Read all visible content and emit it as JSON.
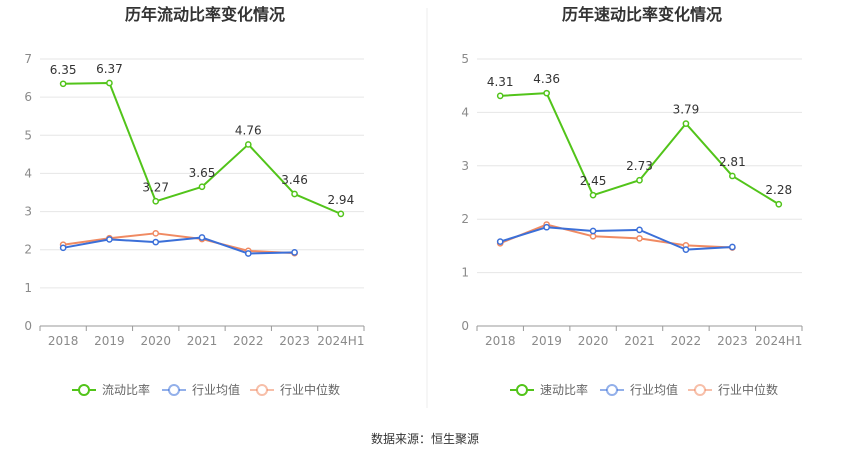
{
  "source_text": "数据来源：恒生聚源",
  "chart_data": [
    {
      "type": "line",
      "title": "历年流动比率变化情况",
      "categories": [
        "2018",
        "2019",
        "2020",
        "2021",
        "2022",
        "2023",
        "2024H1"
      ],
      "ylim": [
        0,
        7
      ],
      "yticks": [
        0,
        1,
        2,
        3,
        4,
        5,
        6,
        7
      ],
      "grid": true,
      "legend_position": "bottom",
      "series": [
        {
          "name": "流动比率",
          "color": "#52c41a",
          "values": [
            6.35,
            6.37,
            3.27,
            3.65,
            4.76,
            3.46,
            2.94
          ],
          "labels": true
        },
        {
          "name": "行业均值",
          "color": "#3b6fd8",
          "values": [
            2.05,
            2.27,
            2.2,
            2.32,
            1.9,
            1.93,
            null
          ],
          "labels": false
        },
        {
          "name": "行业中位数",
          "color": "#f08a62",
          "values": [
            2.13,
            2.3,
            2.43,
            2.28,
            1.97,
            1.91,
            null
          ],
          "labels": false
        }
      ]
    },
    {
      "type": "line",
      "title": "历年速动比率变化情况",
      "categories": [
        "2018",
        "2019",
        "2020",
        "2021",
        "2022",
        "2023",
        "2024H1"
      ],
      "ylim": [
        0,
        5
      ],
      "yticks": [
        0,
        1,
        2,
        3,
        4,
        5
      ],
      "grid": true,
      "legend_position": "bottom",
      "series": [
        {
          "name": "速动比率",
          "color": "#52c41a",
          "values": [
            4.31,
            4.36,
            2.45,
            2.73,
            3.79,
            2.81,
            2.28
          ],
          "labels": true
        },
        {
          "name": "行业均值",
          "color": "#3b6fd8",
          "values": [
            1.58,
            1.85,
            1.78,
            1.8,
            1.43,
            1.48,
            null
          ],
          "labels": false
        },
        {
          "name": "行业中位数",
          "color": "#f08a62",
          "values": [
            1.55,
            1.9,
            1.68,
            1.64,
            1.51,
            1.47,
            null
          ],
          "labels": false
        }
      ]
    }
  ]
}
